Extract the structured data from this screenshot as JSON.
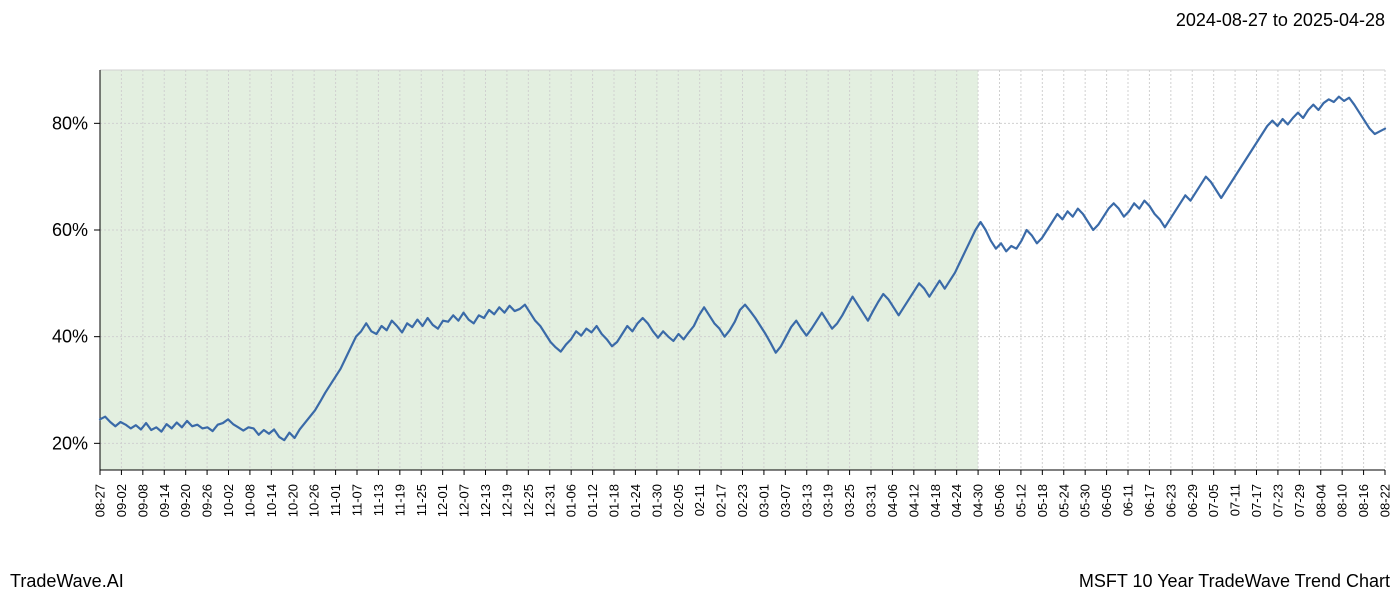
{
  "header": {
    "date_range": "2024-08-27 to 2025-04-28"
  },
  "footer": {
    "left": "TradeWave.AI",
    "right": "MSFT 10 Year TradeWave Trend Chart"
  },
  "chart": {
    "type": "line",
    "background_color": "#ffffff",
    "highlight_fill": "#e3efe0",
    "highlight_opacity": 1.0,
    "highlight_x_start": "08-27",
    "highlight_x_end": "04-30",
    "line_color": "#3a6aa8",
    "line_width": 2.2,
    "grid_color": "#d0d0d0",
    "grid_dash": "2,2",
    "axis_color": "#000000",
    "plot_border_top_bottom": "#d0d0d0",
    "y_axis": {
      "min": 15,
      "max": 90,
      "ticks": [
        20,
        40,
        60,
        80
      ],
      "tick_labels": [
        "20%",
        "40%",
        "60%",
        "80%"
      ],
      "label_fontsize": 18
    },
    "x_axis": {
      "ticks": [
        "08-27",
        "09-02",
        "09-08",
        "09-14",
        "09-20",
        "09-26",
        "10-02",
        "10-08",
        "10-14",
        "10-20",
        "10-26",
        "11-01",
        "11-07",
        "11-13",
        "11-19",
        "11-25",
        "12-01",
        "12-07",
        "12-13",
        "12-19",
        "12-25",
        "12-31",
        "01-06",
        "01-12",
        "01-18",
        "01-24",
        "01-30",
        "02-05",
        "02-11",
        "02-17",
        "02-23",
        "03-01",
        "03-07",
        "03-13",
        "03-19",
        "03-25",
        "03-31",
        "04-06",
        "04-12",
        "04-18",
        "04-24",
        "04-30",
        "05-06",
        "05-12",
        "05-18",
        "05-24",
        "05-30",
        "06-05",
        "06-11",
        "06-17",
        "06-23",
        "06-29",
        "07-05",
        "07-11",
        "07-17",
        "07-23",
        "07-29",
        "08-04",
        "08-10",
        "08-16",
        "08-22"
      ],
      "label_fontsize": 13
    },
    "series": {
      "values": [
        24.5,
        25.0,
        24.0,
        23.2,
        24.0,
        23.5,
        22.8,
        23.4,
        22.6,
        23.8,
        22.5,
        23.0,
        22.2,
        23.6,
        22.8,
        23.9,
        23.0,
        24.2,
        23.2,
        23.5,
        22.8,
        23.0,
        22.3,
        23.5,
        23.8,
        24.5,
        23.6,
        23.0,
        22.4,
        23.0,
        22.8,
        21.6,
        22.5,
        21.8,
        22.6,
        21.2,
        20.6,
        22.0,
        21.0,
        22.6,
        23.8,
        25.0,
        26.2,
        27.8,
        29.5,
        31.0,
        32.5,
        34.0,
        36.0,
        38.0,
        40.0,
        41.0,
        42.5,
        41.0,
        40.5,
        42.0,
        41.2,
        43.0,
        42.0,
        40.8,
        42.5,
        41.8,
        43.2,
        42.0,
        43.5,
        42.2,
        41.5,
        43.0,
        42.8,
        44.0,
        43.0,
        44.5,
        43.2,
        42.5,
        44.0,
        43.5,
        45.0,
        44.2,
        45.5,
        44.5,
        45.8,
        44.8,
        45.2,
        46.0,
        44.5,
        43.0,
        42.0,
        40.5,
        39.0,
        38.0,
        37.2,
        38.5,
        39.5,
        41.0,
        40.2,
        41.5,
        40.8,
        42.0,
        40.5,
        39.5,
        38.2,
        39.0,
        40.5,
        42.0,
        41.0,
        42.5,
        43.5,
        42.5,
        41.0,
        39.8,
        41.0,
        40.0,
        39.2,
        40.5,
        39.5,
        40.8,
        42.0,
        44.0,
        45.5,
        44.0,
        42.5,
        41.5,
        40.0,
        41.2,
        42.8,
        45.0,
        46.0,
        44.8,
        43.5,
        42.0,
        40.5,
        38.8,
        37.0,
        38.2,
        40.0,
        41.8,
        43.0,
        41.5,
        40.2,
        41.5,
        43.0,
        44.5,
        43.0,
        41.5,
        42.5,
        44.0,
        45.8,
        47.5,
        46.0,
        44.5,
        43.0,
        44.8,
        46.5,
        48.0,
        47.0,
        45.5,
        44.0,
        45.5,
        47.0,
        48.5,
        50.0,
        49.0,
        47.5,
        49.0,
        50.5,
        49.0,
        50.5,
        52.0,
        54.0,
        56.0,
        58.0,
        60.0,
        61.5,
        60.0,
        58.0,
        56.5,
        57.5,
        56.0,
        57.0,
        56.5,
        58.0,
        60.0,
        59.0,
        57.5,
        58.5,
        60.0,
        61.5,
        63.0,
        62.0,
        63.5,
        62.5,
        64.0,
        63.0,
        61.5,
        60.0,
        61.0,
        62.5,
        64.0,
        65.0,
        64.0,
        62.5,
        63.5,
        65.0,
        64.0,
        65.5,
        64.5,
        63.0,
        62.0,
        60.5,
        62.0,
        63.5,
        65.0,
        66.5,
        65.5,
        67.0,
        68.5,
        70.0,
        69.0,
        67.5,
        66.0,
        67.5,
        69.0,
        70.5,
        72.0,
        73.5,
        75.0,
        76.5,
        78.0,
        79.5,
        80.5,
        79.5,
        80.8,
        79.8,
        81.0,
        82.0,
        81.0,
        82.5,
        83.5,
        82.5,
        83.8,
        84.5,
        84.0,
        85.0,
        84.2,
        84.8,
        83.5,
        82.0,
        80.5,
        79.0,
        78.0,
        78.5,
        79.0
      ]
    }
  }
}
